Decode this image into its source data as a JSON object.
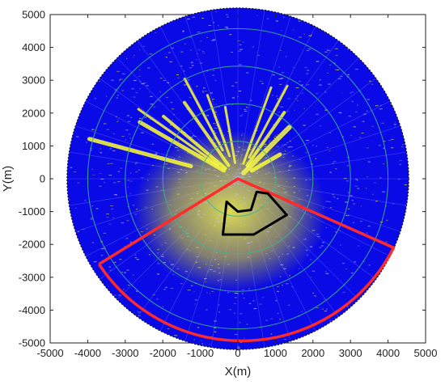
{
  "chart_data": {
    "type": "radar-sector-plot",
    "xlabel": "X(m)",
    "ylabel": "Y(m)",
    "xlim": [
      -5000,
      5000
    ],
    "ylim": [
      -5000,
      5000
    ],
    "xticks": [
      -5000,
      -4000,
      -3000,
      -2000,
      -1000,
      0,
      1000,
      2000,
      3000,
      4000,
      5000
    ],
    "yticks": [
      5000,
      4000,
      3000,
      2000,
      1000,
      0,
      -1000,
      -2000,
      -3000,
      -4000,
      -5000
    ],
    "x_tick_labels": [
      "-5000",
      "-4000",
      "-3000",
      "-2000",
      "-1000",
      "0",
      "1000",
      "2000",
      "3000",
      "4000",
      "5000"
    ],
    "y_tick_labels": [
      "5000",
      "4000",
      "3000",
      "2000",
      "1000",
      "0",
      "-1000",
      "-2000",
      "-3000",
      "-4000",
      "-5000"
    ],
    "radar_center": [
      0,
      0
    ],
    "coverage_radius": 4550,
    "range_ring_radii": [
      1000,
      2000,
      3000,
      4000
    ],
    "sector_boundary": {
      "color": "#ff2a2a",
      "points": [
        [
          0,
          0
        ],
        [
          -3700,
          -2600
        ],
        [
          4150,
          -2100
        ]
      ],
      "arc_from": [
        -3700,
        -2600
      ],
      "arc_to": [
        4150,
        -2100
      ]
    },
    "region_of_interest": {
      "color": "#000000",
      "points": [
        [
          0,
          -1000
        ],
        [
          350,
          -950
        ],
        [
          500,
          -400
        ],
        [
          800,
          -450
        ],
        [
          1300,
          -1100
        ],
        [
          420,
          -1700
        ],
        [
          -400,
          -1700
        ],
        [
          -300,
          -700
        ]
      ]
    },
    "colors": {
      "background_field": "#0a0ae6",
      "clutter": "#ffff33",
      "range_rings": "#3fb58a"
    }
  }
}
